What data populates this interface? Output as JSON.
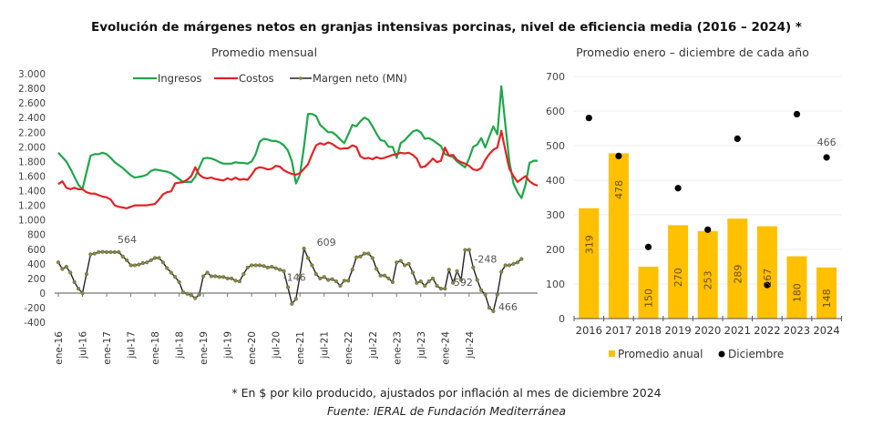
{
  "title": "Evolución de márgenes netos en granjas intensivas porcinas, nivel de eficiencia media (2016 – 2024) *",
  "footnote": "* En $ por kilo producido, ajustados por inflación al mes de diciembre 2024",
  "source": "Fuente: IERAL de Fundación Mediterránea",
  "chart_data": [
    {
      "type": "line",
      "title": "Promedio mensual",
      "xlabel": "",
      "ylabel": "",
      "ylim": [
        -400,
        3000
      ],
      "yticks": [
        -400,
        -200,
        0,
        200,
        400,
        600,
        800,
        1000,
        1200,
        1400,
        1600,
        1800,
        2000,
        2200,
        2400,
        2600,
        2800,
        3000
      ],
      "ytick_labels": [
        "-400",
        "-200",
        "0",
        "200",
        "400",
        "600",
        "800",
        "1.000",
        "1.200",
        "1.400",
        "1.600",
        "1.800",
        "2.000",
        "2.200",
        "2.400",
        "2.600",
        "2.800",
        "3.000"
      ],
      "xtick_labels": [
        "ene-16",
        "jul-16",
        "ene-17",
        "jul-17",
        "ene-18",
        "jul-18",
        "ene-19",
        "jul-19",
        "ene-20",
        "jul-20",
        "ene-21",
        "jul-21",
        "ene-22",
        "jul-22",
        "ene-23",
        "jul-23",
        "ene-24",
        "jul-24"
      ],
      "x_start": "ene-16",
      "x_end": "dic-24",
      "grid": false,
      "legend_position": "top",
      "series": [
        {
          "name": "Ingresos",
          "color": "#1fa64a",
          "values": [
            1920,
            1860,
            1800,
            1700,
            1590,
            1480,
            1420,
            1650,
            1880,
            1900,
            1900,
            1920,
            1900,
            1850,
            1790,
            1750,
            1710,
            1660,
            1610,
            1580,
            1590,
            1600,
            1620,
            1670,
            1690,
            1680,
            1670,
            1660,
            1640,
            1600,
            1560,
            1520,
            1520,
            1520,
            1590,
            1720,
            1840,
            1850,
            1840,
            1820,
            1790,
            1770,
            1770,
            1770,
            1790,
            1780,
            1780,
            1770,
            1800,
            1900,
            2070,
            2110,
            2100,
            2080,
            2080,
            2060,
            2020,
            1950,
            1800,
            1500,
            1620,
            2000,
            2450,
            2450,
            2420,
            2300,
            2250,
            2200,
            2200,
            2160,
            2100,
            2050,
            2170,
            2300,
            2280,
            2350,
            2400,
            2370,
            2280,
            2180,
            2090,
            2080,
            2000,
            2000,
            1850,
            2050,
            2090,
            2150,
            2210,
            2230,
            2200,
            2110,
            2120,
            2090,
            2050,
            2010,
            1900,
            1880,
            1860,
            1800,
            1760,
            1720,
            1840,
            2000,
            2030,
            2120,
            1990,
            2140,
            2280,
            2170,
            2830,
            2300,
            1800,
            1500,
            1380,
            1300,
            1480,
            1780,
            1810,
            1810,
            1830,
            1860
          ],
          "sample_note": "monthly, ene-16 to dic-24 (approximate)"
        },
        {
          "name": "Costos",
          "color": "#e32226",
          "values": [
            1490,
            1530,
            1440,
            1420,
            1440,
            1420,
            1420,
            1380,
            1360,
            1360,
            1340,
            1320,
            1310,
            1280,
            1200,
            1180,
            1170,
            1160,
            1180,
            1200,
            1200,
            1200,
            1200,
            1210,
            1220,
            1280,
            1350,
            1380,
            1390,
            1500,
            1510,
            1520,
            1550,
            1600,
            1720,
            1620,
            1580,
            1570,
            1580,
            1560,
            1550,
            1540,
            1570,
            1550,
            1580,
            1550,
            1560,
            1550,
            1620,
            1700,
            1720,
            1710,
            1690,
            1700,
            1740,
            1730,
            1680,
            1650,
            1630,
            1620,
            1640,
            1700,
            1760,
            1900,
            2020,
            2050,
            2030,
            2060,
            2040,
            2000,
            1970,
            1980,
            1980,
            2020,
            2000,
            1870,
            1840,
            1850,
            1830,
            1860,
            1840,
            1850,
            1870,
            1890,
            1900,
            1920,
            1910,
            1920,
            1890,
            1840,
            1720,
            1730,
            1780,
            1840,
            1790,
            1810,
            1990,
            1880,
            1890,
            1820,
            1790,
            1770,
            1740,
            1690,
            1680,
            1710,
            1820,
            1900,
            1960,
            1990,
            2220,
            1950,
            1700,
            1600,
            1520,
            1560,
            1600,
            1530,
            1490,
            1470,
            1460,
            1440,
            1420,
            1400
          ],
          "sample_note": "monthly (approximate)"
        },
        {
          "name": "Margen neto (MN)",
          "color": "#222222",
          "marker_color": "#8a8a3c",
          "values": [
            420,
            330,
            360,
            280,
            150,
            60,
            0,
            260,
            530,
            540,
            560,
            564,
            560,
            560,
            560,
            560,
            500,
            450,
            380,
            380,
            390,
            410,
            420,
            450,
            480,
            480,
            420,
            340,
            280,
            220,
            150,
            10,
            -10,
            -30,
            -70,
            -20,
            230,
            280,
            230,
            230,
            220,
            220,
            200,
            200,
            170,
            160,
            260,
            350,
            380,
            380,
            380,
            370,
            350,
            360,
            340,
            320,
            300,
            80,
            -146,
            -80,
            240,
            609,
            480,
            380,
            260,
            200,
            220,
            180,
            190,
            160,
            100,
            170,
            170,
            320,
            490,
            500,
            540,
            540,
            480,
            330,
            240,
            240,
            200,
            150,
            420,
            440,
            380,
            400,
            280,
            140,
            160,
            100,
            160,
            200,
            100,
            60,
            60,
            320,
            140,
            300,
            180,
            590,
            592,
            350,
            180,
            40,
            -20,
            -200,
            -248,
            -20,
            290,
            380,
            380,
            400,
            420,
            466
          ],
          "annotations": [
            {
              "label": "564",
              "at": "ene-17"
            },
            {
              "label": "609",
              "at": "feb-21"
            },
            {
              "label": "-146",
              "at": "jul-20"
            },
            {
              "label": "592",
              "at": "dic-23"
            },
            {
              "label": "-248",
              "at": "jun-24"
            },
            {
              "label": "466",
              "at": "dic-24"
            }
          ]
        }
      ]
    },
    {
      "type": "bar",
      "title": "Promedio enero – diciembre de cada año",
      "xlabel": "",
      "ylabel": "",
      "ylim": [
        0,
        700
      ],
      "yticks": [
        0,
        100,
        200,
        300,
        400,
        500,
        600,
        700
      ],
      "grid": true,
      "legend_position": "bottom",
      "categories": [
        "2016",
        "2017",
        "2018",
        "2019",
        "2020",
        "2021",
        "2022",
        "2023",
        "2024"
      ],
      "series": [
        {
          "name": "Promedio anual",
          "kind": "bar",
          "color": "#ffc000",
          "values": [
            319,
            478,
            150,
            270,
            253,
            289,
            267,
            180,
            148
          ]
        },
        {
          "name": "Diciembre",
          "kind": "scatter",
          "color": "#000000",
          "values": [
            580,
            470,
            207,
            377,
            257,
            520,
            97,
            591,
            466
          ]
        }
      ],
      "annotations": [
        {
          "label": "466",
          "at": "2024",
          "series": "Diciembre"
        }
      ]
    }
  ]
}
